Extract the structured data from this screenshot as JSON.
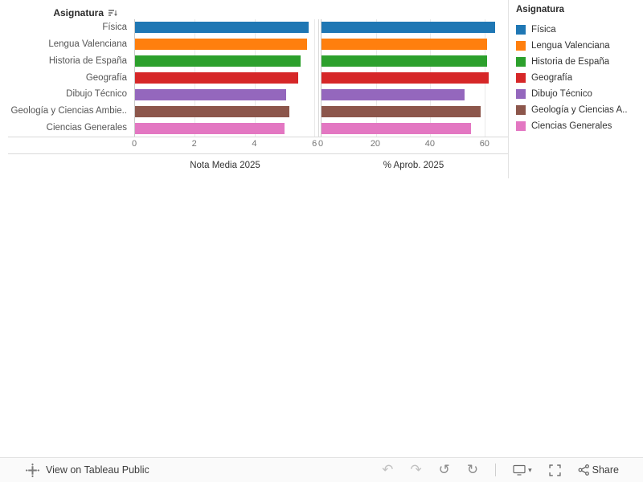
{
  "header": {
    "row_field_label": "Asignatura"
  },
  "chart_data": {
    "type": "bar",
    "orientation": "horizontal",
    "grid": true,
    "legend_position": "right",
    "categories": [
      "Física",
      "Lengua Valenciana",
      "Historia de España",
      "Geografía",
      "Dibujo Técnico",
      "Geología y Ciencias Ambie..",
      "Ciencias Generales"
    ],
    "colors": [
      "#1f77b4",
      "#ff7f0e",
      "#2ca02c",
      "#d62728",
      "#9467bd",
      "#8c564b",
      "#e377c2"
    ],
    "panels": [
      {
        "title": "Nota Media 2025",
        "xlim": [
          0,
          6.05
        ],
        "ticks": [
          0,
          2,
          4,
          6
        ],
        "values": [
          5.8,
          5.75,
          5.55,
          5.45,
          5.05,
          5.15,
          5.0
        ]
      },
      {
        "title": "% Aprob. 2025",
        "xlim": [
          0,
          68
        ],
        "ticks": [
          0,
          20,
          40,
          60
        ],
        "values": [
          64,
          61,
          61,
          61.5,
          52.5,
          58.5,
          55
        ]
      }
    ]
  },
  "legend": {
    "title": "Asignatura",
    "items": [
      {
        "label": "Física",
        "color": "#1f77b4"
      },
      {
        "label": "Lengua Valenciana",
        "color": "#ff7f0e"
      },
      {
        "label": "Historia de España",
        "color": "#2ca02c"
      },
      {
        "label": "Geografía",
        "color": "#d62728"
      },
      {
        "label": "Dibujo Técnico",
        "color": "#9467bd"
      },
      {
        "label": "Geología y Ciencias A..",
        "color": "#8c564b"
      },
      {
        "label": "Ciencias Generales",
        "color": "#e377c2"
      }
    ]
  },
  "toolbar": {
    "view_label": "View on Tableau Public",
    "share_label": "Share",
    "icons": {
      "undo": "↶",
      "redo": "↷",
      "revert": "↺",
      "refresh": "↻",
      "download_caret": "▾"
    }
  }
}
